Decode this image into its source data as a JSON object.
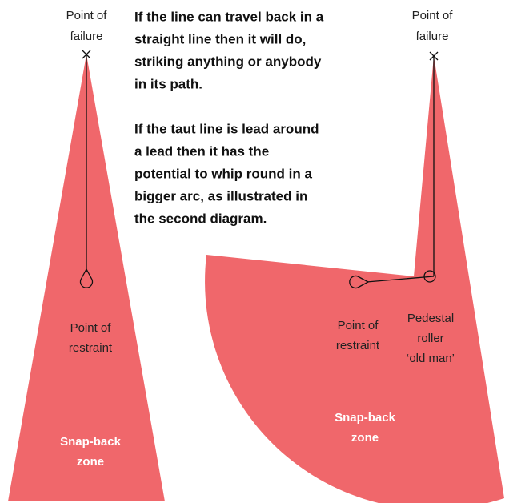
{
  "left_diagram": {
    "failure_label": [
      "Point of",
      "failure"
    ],
    "restraint_label": [
      "Point of",
      "restraint"
    ],
    "zone_label": [
      "Snap-back",
      "zone"
    ]
  },
  "text": {
    "paragraph_1": [
      "If the line can travel back in a",
      "straight line then it will do,",
      "striking anything or anybody",
      "in its path."
    ],
    "paragraph_2": [
      "If the taut line is lead around",
      "a lead then it has the",
      "potential to whip round in a",
      "bigger arc, as illustrated in",
      "the second diagram."
    ]
  },
  "right_diagram": {
    "failure_label": [
      "Point of",
      "failure"
    ],
    "restraint_label": [
      "Point of",
      "restraint"
    ],
    "roller_label": [
      "Pedestal",
      "roller",
      "‘old man’"
    ],
    "zone_label": [
      "Snap-back",
      "zone"
    ]
  }
}
